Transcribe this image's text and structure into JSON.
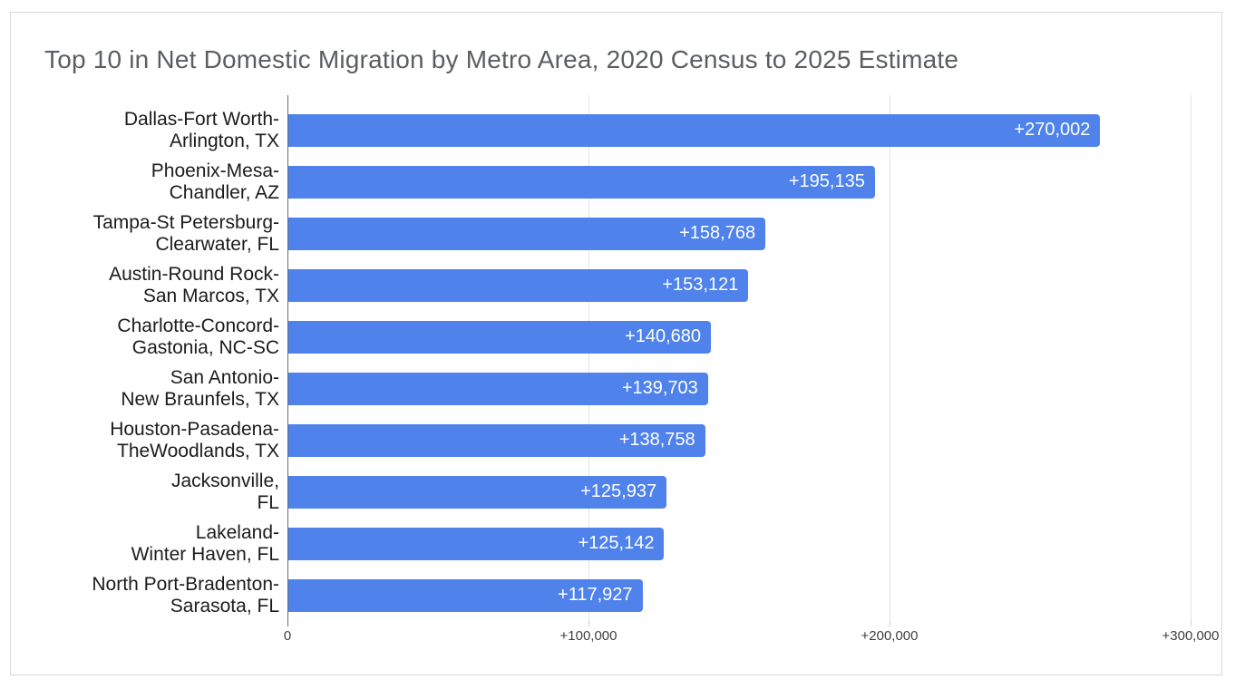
{
  "chart_data": {
    "type": "bar",
    "orientation": "horizontal",
    "title": "Top 10 in Net Domestic Migration by Metro Area, 2020 Census to 2025 Estimate",
    "categories": [
      [
        "Dallas-Fort Worth-",
        "Arlington, TX"
      ],
      [
        "Phoenix-Mesa-",
        "Chandler, AZ"
      ],
      [
        "Tampa-St Petersburg-",
        "Clearwater, FL"
      ],
      [
        "Austin-Round Rock-",
        "San Marcos, TX"
      ],
      [
        "Charlotte-Concord-",
        "Gastonia, NC-SC"
      ],
      [
        "San Antonio-",
        "New Braunfels, TX"
      ],
      [
        "Houston-Pasadena-",
        "TheWoodlands, TX"
      ],
      [
        "Jacksonville,",
        "FL"
      ],
      [
        "Lakeland-",
        "Winter Haven, FL"
      ],
      [
        "North Port-Bradenton-",
        "Sarasota, FL"
      ]
    ],
    "values": [
      270002,
      195135,
      158768,
      153121,
      140680,
      139703,
      138758,
      125937,
      125142,
      117927
    ],
    "value_labels": [
      "+270,002",
      "+195,135",
      "+158,768",
      "+153,121",
      "+140,680",
      "+139,703",
      "+138,758",
      "+125,937",
      "+125,142",
      "+117,927"
    ],
    "xlabel": "",
    "ylabel": "",
    "xlim": [
      0,
      300000
    ],
    "x_ticks": {
      "values": [
        0,
        100000,
        200000,
        300000
      ],
      "labels": [
        "0",
        "+100,000",
        "+200,000",
        "+300,000"
      ]
    },
    "grid": "vertical-gridlines-on",
    "legend": "none",
    "colors": {
      "bar": "#4f82ea",
      "value_text": "#ffffff",
      "category_text": "#1c1c1c",
      "tick_text": "#3f3f3f",
      "title_text": "#5b5e61",
      "gridline": "#e3e3e3",
      "axis_line": "#6b6b6b",
      "frame_border": "#d9d9d9"
    }
  }
}
